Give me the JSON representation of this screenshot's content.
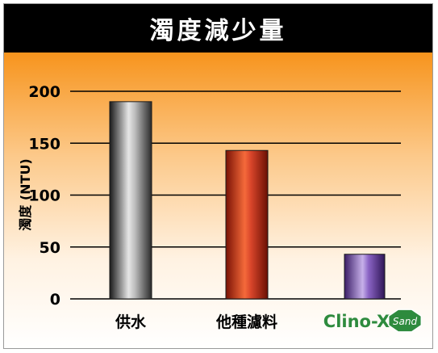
{
  "chart_data": {
    "type": "bar",
    "title": "濁度減少量",
    "ylabel": "濁度 (NTU)",
    "xlabel": "",
    "categories": [
      "供水",
      "他種濾料",
      "Clino-X"
    ],
    "category_badge": "Sand",
    "values": [
      190,
      143,
      43
    ],
    "ylim": [
      0,
      200
    ],
    "yticks": [
      0,
      50,
      100,
      150,
      200
    ],
    "grid": true,
    "legend": "none",
    "colors": {
      "title_bg": "#000000",
      "title_text": "#ffffff",
      "background_top": "#f7941d",
      "background_bottom": "#ffffff",
      "bar_grey": "#9a9a9a",
      "bar_red": "#d8452a",
      "bar_purple": "#6a3fa0",
      "clino_green": "#2e8b3e"
    }
  }
}
